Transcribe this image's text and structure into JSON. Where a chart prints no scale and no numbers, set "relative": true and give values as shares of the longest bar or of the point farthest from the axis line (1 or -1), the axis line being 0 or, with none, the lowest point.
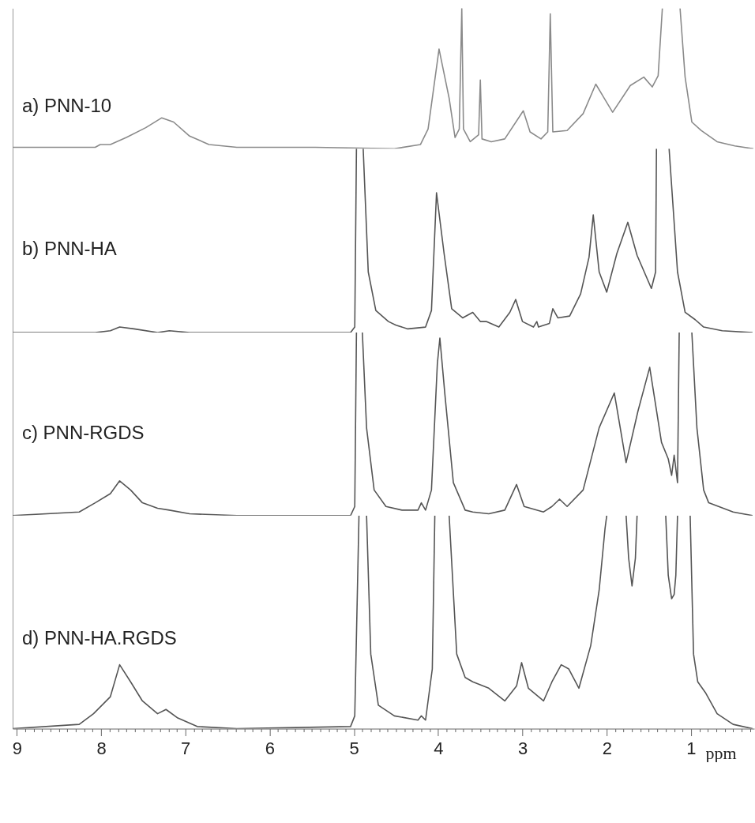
{
  "chart_data": [
    {
      "type": "line",
      "relative": true,
      "xlim": [
        9.05,
        0.25
      ],
      "tick_labels": false,
      "series": [
        {
          "name": "a) PNN-10",
          "color": "#8a8a8a",
          "x": [
            9.05,
            8.07,
            8.01,
            7.89,
            7.7,
            7.47,
            7.28,
            7.14,
            6.95,
            6.72,
            6.39,
            5.46,
            4.52,
            4.21,
            4.12,
            3.99,
            3.87,
            3.8,
            3.75,
            3.72,
            3.7,
            3.62,
            3.52,
            3.5,
            3.48,
            3.37,
            3.21,
            2.99,
            2.91,
            2.78,
            2.7,
            2.67,
            2.64,
            2.47,
            2.28,
            2.13,
            1.93,
            1.72,
            1.56,
            1.46,
            1.39,
            1.34,
            1.24,
            1.13,
            1.07,
            0.99,
            0.88,
            0.69,
            0.48,
            0.26
          ],
          "values": [
            0.01,
            0.01,
            0.03,
            0.03,
            0.08,
            0.15,
            0.22,
            0.19,
            0.09,
            0.03,
            0.01,
            0.01,
            0,
            0.03,
            0.14,
            0.71,
            0.36,
            0.08,
            0.14,
            1,
            0.14,
            0.05,
            0.1,
            0.49,
            0.07,
            0.05,
            0.07,
            0.27,
            0.12,
            0.07,
            0.12,
            0.96,
            0.12,
            0.13,
            0.25,
            0.46,
            0.26,
            0.45,
            0.51,
            0.44,
            0.52,
            1,
            null,
            1,
            0.51,
            0.19,
            0.13,
            0.05,
            0.02,
            0
          ]
        }
      ]
    },
    {
      "type": "line",
      "relative": true,
      "xlim": [
        9.05,
        0.25
      ],
      "tick_labels": false,
      "series": [
        {
          "name": "b) PNN-HA",
          "color": "#555555",
          "x": [
            9.05,
            8.07,
            7.89,
            7.78,
            7.61,
            7.33,
            7.19,
            6.95,
            5.93,
            5.04,
            4.99,
            4.97,
            4.93,
            4.89,
            4.83,
            4.74,
            4.59,
            4.5,
            4.36,
            4.15,
            4.08,
            4.02,
            3.93,
            3.84,
            3.71,
            3.59,
            3.5,
            3.43,
            3.28,
            3.15,
            3.08,
            3.0,
            2.87,
            2.83,
            2.81,
            2.68,
            2.64,
            2.58,
            2.44,
            2.31,
            2.21,
            2.16,
            2.09,
            2.0,
            1.88,
            1.75,
            1.64,
            1.47,
            1.42,
            1.41,
            1.34,
            1.26,
            1.16,
            1.07,
            0.95,
            0.85,
            0.63,
            0.27
          ],
          "values": [
            0,
            0,
            0.01,
            0.03,
            0.02,
            0,
            0.01,
            0,
            0,
            0,
            0.03,
            1,
            null,
            1,
            0.33,
            0.12,
            0.06,
            0.04,
            0.02,
            0.03,
            0.12,
            0.76,
            0.43,
            0.13,
            0.08,
            0.11,
            0.06,
            0.06,
            0.03,
            0.11,
            0.18,
            0.06,
            0.03,
            0.06,
            0.03,
            0.05,
            0.13,
            0.08,
            0.09,
            0.21,
            0.41,
            0.64,
            0.33,
            0.22,
            0.43,
            0.6,
            0.42,
            0.24,
            0.33,
            1,
            null,
            1,
            0.33,
            0.11,
            0.07,
            0.03,
            0.01,
            0
          ]
        }
      ]
    },
    {
      "type": "line",
      "relative": true,
      "xlim": [
        9.05,
        0.25
      ],
      "tick_labels": false,
      "series": [
        {
          "name": "c) PNN-RGDS",
          "color": "#555555",
          "x": [
            9.05,
            8.26,
            8.07,
            7.89,
            7.78,
            7.65,
            7.51,
            7.33,
            7.19,
            6.95,
            6.39,
            5.04,
            4.99,
            4.97,
            4.93,
            4.9,
            4.85,
            4.76,
            4.62,
            4.43,
            4.24,
            4.2,
            4.15,
            4.08,
            4.01,
            3.98,
            3.92,
            3.82,
            3.68,
            3.59,
            3.4,
            3.21,
            3.07,
            2.98,
            2.75,
            2.65,
            2.56,
            2.47,
            2.28,
            2.09,
            1.91,
            1.77,
            1.63,
            1.49,
            1.35,
            1.27,
            1.23,
            1.2,
            1.16,
            1.14,
            1.08,
            0.99,
            0.93,
            0.85,
            0.79,
            0.5,
            0.27
          ],
          "values": [
            0,
            0.02,
            0.07,
            0.12,
            0.19,
            0.14,
            0.07,
            0.04,
            0.03,
            0.01,
            0,
            0,
            0.05,
            1,
            null,
            1,
            0.48,
            0.14,
            0.05,
            0.03,
            0.03,
            0.07,
            0.03,
            0.14,
            0.83,
            0.97,
            0.66,
            0.18,
            0.03,
            0.02,
            0.01,
            0.03,
            0.17,
            0.05,
            0.02,
            0.05,
            0.09,
            0.05,
            0.14,
            0.48,
            0.67,
            0.29,
            0.57,
            0.81,
            0.4,
            0.31,
            0.22,
            0.33,
            0.18,
            1,
            null,
            1,
            0.48,
            0.14,
            0.07,
            0.02,
            0
          ]
        }
      ]
    },
    {
      "type": "line",
      "relative": true,
      "xlim": [
        9.05,
        0.25
      ],
      "xlabel": "ppm",
      "xticks": [
        9,
        {
          "value": 8.9,
          "label": null
        },
        {
          "value": 8.8,
          "label": null
        },
        {
          "value": 8.7,
          "label": null
        },
        {
          "value": 8.6,
          "label": null
        },
        {
          "value": 8.5,
          "label": null
        },
        {
          "value": 8.4,
          "label": null
        },
        {
          "value": 8.3,
          "label": null
        },
        {
          "value": 8.2,
          "label": null
        },
        {
          "value": 8.1,
          "label": null
        },
        8,
        {
          "value": 7.9,
          "label": null
        },
        {
          "value": 7.8,
          "label": null
        },
        {
          "value": 7.7,
          "label": null
        },
        {
          "value": 7.6,
          "label": null
        },
        {
          "value": 7.5,
          "label": null
        },
        {
          "value": 7.4,
          "label": null
        },
        {
          "value": 7.3,
          "label": null
        },
        {
          "value": 7.2,
          "label": null
        },
        {
          "value": 7.1,
          "label": null
        },
        7,
        {
          "value": 6.9,
          "label": null
        },
        {
          "value": 6.8,
          "label": null
        },
        {
          "value": 6.7,
          "label": null
        },
        {
          "value": 6.6,
          "label": null
        },
        {
          "value": 6.5,
          "label": null
        },
        {
          "value": 6.4,
          "label": null
        },
        {
          "value": 6.3,
          "label": null
        },
        {
          "value": 6.2,
          "label": null
        },
        {
          "value": 6.1,
          "label": null
        },
        6,
        {
          "value": 5.9,
          "label": null
        },
        {
          "value": 5.8,
          "label": null
        },
        {
          "value": 5.7,
          "label": null
        },
        {
          "value": 5.6,
          "label": null
        },
        {
          "value": 5.5,
          "label": null
        },
        {
          "value": 5.4,
          "label": null
        },
        {
          "value": 5.3,
          "label": null
        },
        {
          "value": 5.2,
          "label": null
        },
        {
          "value": 5.1,
          "label": null
        },
        5,
        {
          "value": 4.9,
          "label": null
        },
        {
          "value": 4.8,
          "label": null
        },
        {
          "value": 4.7,
          "label": null
        },
        {
          "value": 4.6,
          "label": null
        },
        {
          "value": 4.5,
          "label": null
        },
        {
          "value": 4.4,
          "label": null
        },
        {
          "value": 4.3,
          "label": null
        },
        {
          "value": 4.2,
          "label": null
        },
        {
          "value": 4.1,
          "label": null
        },
        4,
        {
          "value": 3.9,
          "label": null
        },
        {
          "value": 3.8,
          "label": null
        },
        {
          "value": 3.7,
          "label": null
        },
        {
          "value": 3.6,
          "label": null
        },
        {
          "value": 3.5,
          "label": null
        },
        {
          "value": 3.4,
          "label": null
        },
        {
          "value": 3.3,
          "label": null
        },
        {
          "value": 3.2,
          "label": null
        },
        {
          "value": 3.1,
          "label": null
        },
        3,
        {
          "value": 2.9,
          "label": null
        },
        {
          "value": 2.8,
          "label": null
        },
        {
          "value": 2.7,
          "label": null
        },
        {
          "value": 2.6,
          "label": null
        },
        {
          "value": 2.5,
          "label": null
        },
        {
          "value": 2.4,
          "label": null
        },
        {
          "value": 2.3,
          "label": null
        },
        {
          "value": 2.2,
          "label": null
        },
        {
          "value": 2.1,
          "label": null
        },
        2,
        {
          "value": 1.9,
          "label": null
        },
        {
          "value": 1.8,
          "label": null
        },
        {
          "value": 1.7,
          "label": null
        },
        {
          "value": 1.6,
          "label": null
        },
        {
          "value": 1.5,
          "label": null
        },
        {
          "value": 1.4,
          "label": null
        },
        {
          "value": 1.3,
          "label": null
        },
        {
          "value": 1.2,
          "label": null
        },
        {
          "value": 1.1,
          "label": null
        },
        1,
        {
          "value": 0.9,
          "label": null
        },
        {
          "value": 0.8,
          "label": null
        },
        {
          "value": 0.7,
          "label": null
        },
        {
          "value": 0.6,
          "label": null
        },
        {
          "value": 0.5,
          "label": null
        },
        {
          "value": 0.4,
          "label": null
        },
        {
          "value": 0.3,
          "label": null
        }
      ],
      "series": [
        {
          "name": "d) PNN-HA.RGDS",
          "color": "#555555",
          "x": [
            9.05,
            8.26,
            8.09,
            7.89,
            7.78,
            7.65,
            7.51,
            7.33,
            7.23,
            7.09,
            6.86,
            6.39,
            5.04,
            4.99,
            4.94,
            4.9,
            4.85,
            4.8,
            4.71,
            4.52,
            4.24,
            4.2,
            4.15,
            4.07,
            4.04,
            3.95,
            3.87,
            3.78,
            3.68,
            3.59,
            3.4,
            3.21,
            3.07,
            3.01,
            2.93,
            2.75,
            2.65,
            2.54,
            2.45,
            2.33,
            2.19,
            2.09,
            2.02,
            2.0,
            1.89,
            1.77,
            1.74,
            1.7,
            1.66,
            1.64,
            1.47,
            1.3,
            1.27,
            1.23,
            1.2,
            1.18,
            1.16,
            1.08,
            1.01,
            0.97,
            0.92,
            0.83,
            0.69,
            0.5,
            0.27
          ],
          "values": [
            0,
            0.02,
            0.07,
            0.15,
            0.3,
            0.22,
            0.13,
            0.07,
            0.09,
            0.05,
            0.01,
            0,
            0.01,
            0.06,
            1,
            null,
            1,
            0.35,
            0.11,
            0.06,
            0.04,
            0.06,
            0.04,
            0.28,
            1,
            null,
            1,
            0.35,
            0.24,
            0.22,
            0.19,
            0.13,
            0.2,
            0.31,
            0.19,
            0.13,
            0.22,
            0.3,
            0.28,
            0.19,
            0.39,
            0.65,
            0.94,
            1,
            null,
            1,
            0.8,
            0.67,
            0.8,
            1,
            null,
            1,
            0.72,
            0.61,
            0.63,
            0.72,
            1,
            null,
            1,
            0.35,
            0.22,
            0.17,
            0.07,
            0.02,
            0
          ]
        }
      ]
    }
  ]
}
